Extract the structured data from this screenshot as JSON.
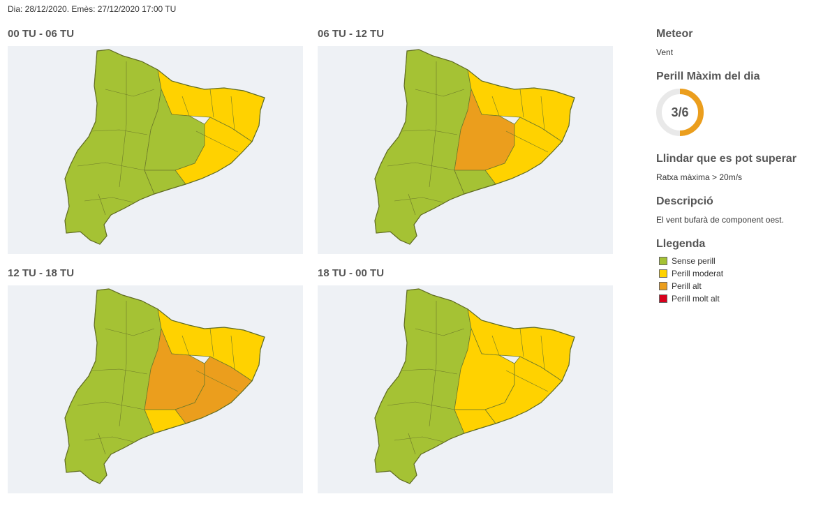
{
  "issued_line": "Dia: 28/12/2020. Emès: 27/12/2020 17:00 TU",
  "panels": [
    {
      "period": "00 TU - 06 TU",
      "zone_levels": {
        "ne": "moderat",
        "central": "sense",
        "coast": "moderat",
        "south": "sense",
        "west": "sense"
      }
    },
    {
      "period": "06 TU - 12 TU",
      "zone_levels": {
        "ne": "moderat",
        "central": "alt",
        "coast": "moderat",
        "south": "sense",
        "west": "sense"
      }
    },
    {
      "period": "12 TU - 18 TU",
      "zone_levels": {
        "ne": "moderat",
        "central": "alt",
        "coast": "alt",
        "south": "moderat",
        "west": "sense"
      }
    },
    {
      "period": "18 TU - 00 TU",
      "zone_levels": {
        "ne": "moderat",
        "central": "moderat",
        "coast": "moderat",
        "south": "moderat",
        "west": "sense"
      }
    }
  ],
  "sidebar": {
    "meteor_heading": "Meteor",
    "meteor_value": "Vent",
    "max_heading": "Perill Màxim del dia",
    "max_level": 3,
    "max_total": 6,
    "max_label": "3/6",
    "threshold_heading": "Llindar que es pot superar",
    "threshold_value": "Ratxa màxima > 20m/s",
    "desc_heading": "Descripció",
    "desc_value": "El vent bufarà de component oest.",
    "legend_heading": "Llegenda",
    "legend": [
      {
        "key": "sense",
        "label": "Sense perill",
        "color": "#a5c234"
      },
      {
        "key": "moderat",
        "label": "Perill moderat",
        "color": "#ffd200"
      },
      {
        "key": "alt",
        "label": "Perill alt",
        "color": "#eb9e1d"
      },
      {
        "key": "molt_alt",
        "label": "Perill molt alt",
        "color": "#d8001c"
      }
    ]
  },
  "gauge_color": "#eb9e1d",
  "gauge_track_color": "#e9e9e9"
}
